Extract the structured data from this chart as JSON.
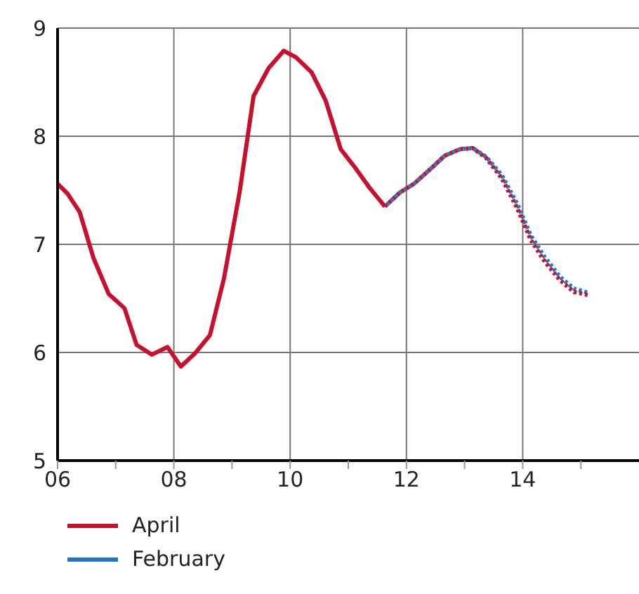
{
  "chart_data": {
    "type": "line",
    "xlim": [
      2006,
      2016
    ],
    "xticks": [
      {
        "value": 2006,
        "label": "06"
      },
      {
        "value": 2007,
        "label": null
      },
      {
        "value": 2008,
        "label": "08"
      },
      {
        "value": 2009,
        "label": null
      },
      {
        "value": 2010,
        "label": "10"
      },
      {
        "value": 2011,
        "label": null
      },
      {
        "value": 2012,
        "label": "12"
      },
      {
        "value": 2013,
        "label": null
      },
      {
        "value": 2014,
        "label": "14"
      },
      {
        "value": 2015,
        "label": null
      }
    ],
    "ylim": [
      5,
      9
    ],
    "yticks": [
      5,
      6,
      7,
      8,
      9
    ],
    "grid": true,
    "legend": "bottom",
    "marker": "none",
    "series": [
      {
        "name": "April",
        "color": "#c8102e",
        "line_style": "solid",
        "x": [
          2006.0,
          2006.17,
          2006.38,
          2006.62,
          2006.88,
          2007.15,
          2007.36,
          2007.62,
          2007.89,
          2008.12,
          2008.36,
          2008.62,
          2008.86,
          2009.13,
          2009.37,
          2009.63,
          2009.89,
          2010.1,
          2010.37,
          2010.61,
          2010.87,
          2011.13,
          2011.37,
          2011.63
        ],
        "values": [
          7.56,
          7.47,
          7.3,
          6.87,
          6.54,
          6.41,
          6.07,
          5.98,
          6.05,
          5.87,
          5.99,
          6.16,
          6.68,
          7.48,
          8.37,
          8.63,
          8.79,
          8.73,
          8.59,
          8.33,
          7.88,
          7.7,
          7.52,
          7.35
        ]
      },
      {
        "name": "February",
        "color": "#1f78c1",
        "line_style": "dotted",
        "x": [
          2011.63,
          2011.89,
          2012.13,
          2012.4,
          2012.66,
          2012.92,
          2013.14,
          2013.37,
          2013.64,
          2013.9,
          2014.14,
          2014.38,
          2014.64,
          2014.88,
          2015.14
        ],
        "values": [
          7.35,
          7.48,
          7.56,
          7.69,
          7.82,
          7.88,
          7.89,
          7.81,
          7.64,
          7.38,
          7.08,
          6.88,
          6.7,
          6.59,
          6.55
        ]
      },
      {
        "color": "#c8102e",
        "line_style": "dotted",
        "x": [
          2011.63,
          2011.89,
          2012.13,
          2012.4,
          2012.66,
          2012.92,
          2013.14,
          2013.37,
          2013.64,
          2013.9,
          2014.14,
          2014.38,
          2014.64,
          2014.88,
          2015.14
        ],
        "values": [
          7.35,
          7.48,
          7.56,
          7.69,
          7.82,
          7.88,
          7.89,
          7.8,
          7.61,
          7.34,
          7.04,
          6.84,
          6.67,
          6.56,
          6.53
        ]
      }
    ]
  }
}
